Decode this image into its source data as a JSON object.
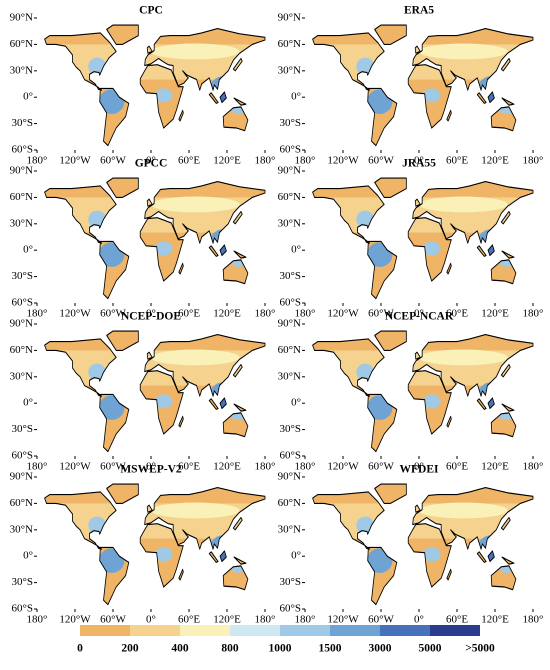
{
  "panels": [
    {
      "title": "CPC"
    },
    {
      "title": "ERA5"
    },
    {
      "title": "GPCC"
    },
    {
      "title": "JRA55"
    },
    {
      "title": "NCEP-DOE"
    },
    {
      "title": "NCEP-NCAR"
    },
    {
      "title": "MSWEP-V2"
    },
    {
      "title": "WFDEI"
    }
  ],
  "lon_ticks": [
    {
      "value": -180,
      "label": "180°"
    },
    {
      "value": -120,
      "label": "120°W"
    },
    {
      "value": -60,
      "label": "60°W"
    },
    {
      "value": 0,
      "label": "0°"
    },
    {
      "value": 60,
      "label": "60°E"
    },
    {
      "value": 120,
      "label": "120°E"
    },
    {
      "value": 180,
      "label": "180°"
    }
  ],
  "lat_ticks": [
    {
      "value": 90,
      "label": "90°N"
    },
    {
      "value": 60,
      "label": "60°N"
    },
    {
      "value": 30,
      "label": "30°N"
    },
    {
      "value": 0,
      "label": "0°"
    },
    {
      "value": -30,
      "label": "30°S"
    },
    {
      "value": -60,
      "label": "60°S"
    }
  ],
  "colorbar": {
    "labels": [
      "0",
      "200",
      "400",
      "800",
      "1000",
      "1500",
      "3000",
      "5000",
      ">5000"
    ],
    "colors": [
      "#efb465",
      "#f5d38f",
      "#faf1b9",
      "#cfe7f0",
      "#9fc9e4",
      "#6fa3d3",
      "#4672b9",
      "#2b3b8e"
    ]
  }
}
